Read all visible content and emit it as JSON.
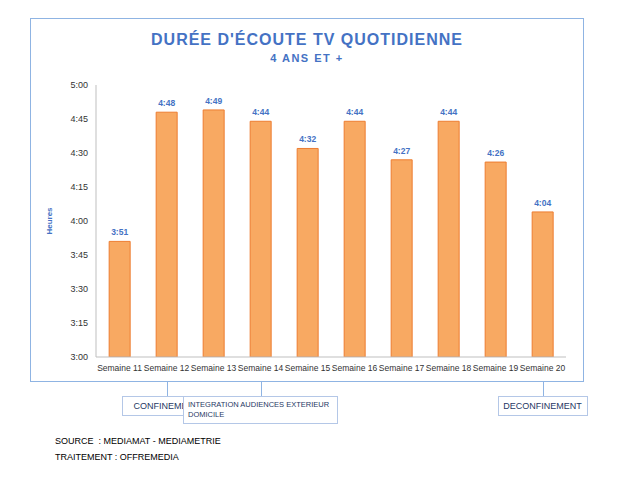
{
  "chart_data": {
    "type": "bar",
    "title": "DURÉE D'ÉCOUTE TV QUOTIDIENNE",
    "subtitle": "4 ANS ET +",
    "y_label": "Heures",
    "categories": [
      "Semaine 11",
      "Semaine 12",
      "Semaine 13",
      "Semaine 14",
      "Semaine 15",
      "Semaine 16",
      "Semaine 17",
      "Semaine 18",
      "Semaine 19",
      "Semaine 20"
    ],
    "values": [
      231,
      288,
      289,
      284,
      272,
      284,
      267,
      284,
      266,
      244
    ],
    "value_labels": [
      "3:51",
      "4:48",
      "4:49",
      "4:44",
      "4:32",
      "4:44",
      "4:27",
      "4:44",
      "4:26",
      "4:04"
    ],
    "data_labels": true,
    "color": "#f8a962",
    "ylim": [
      180,
      300
    ],
    "yticks": [
      {
        "value": 180,
        "label": "3:00"
      },
      {
        "value": 195,
        "label": "3:15"
      },
      {
        "value": 210,
        "label": "3:30"
      },
      {
        "value": 225,
        "label": "3:45"
      },
      {
        "value": 240,
        "label": "4:00"
      },
      {
        "value": 255,
        "label": "4:15"
      },
      {
        "value": 270,
        "label": "4:30"
      },
      {
        "value": 285,
        "label": "4:45"
      },
      {
        "value": 300,
        "label": "5:00"
      }
    ],
    "grid": false,
    "annotations": [
      {
        "text": "CONFINEMENT",
        "category": "Semaine 12"
      },
      {
        "text": "INTEGRATION AUDIENCES EXTERIEUR DOMICILE",
        "category": "Semaine 14"
      },
      {
        "text": "DECONFINEMENT",
        "category": "Semaine 20"
      }
    ],
    "source": [
      "SOURCE  : MEDIAMAT - MEDIAMETRIE",
      "TRAITEMENT : OFFREMEDIA"
    ]
  }
}
